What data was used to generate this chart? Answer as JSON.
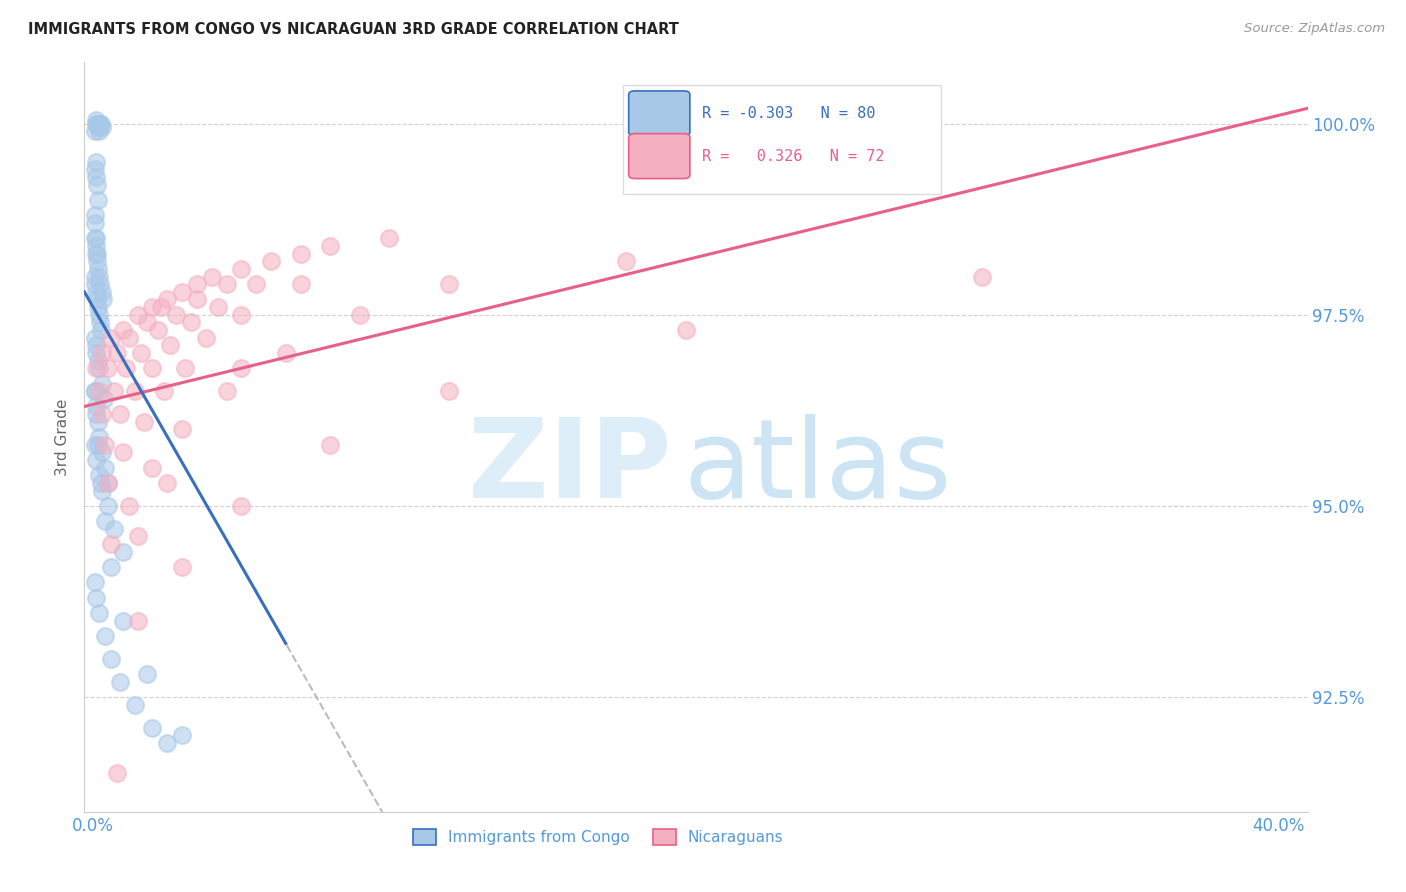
{
  "title": "IMMIGRANTS FROM CONGO VS NICARAGUAN 3RD GRADE CORRELATION CHART",
  "source": "Source: ZipAtlas.com",
  "ylabel": "3rd Grade",
  "ymin": 91.0,
  "ymax": 100.8,
  "xmin": -0.3,
  "xmax": 41.0,
  "legend_blue_r": "-0.303",
  "legend_blue_n": "80",
  "legend_pink_r": "0.326",
  "legend_pink_n": "72",
  "blue_color": "#a8c8e8",
  "pink_color": "#f4b0c0",
  "blue_line_color": "#3a6fbd",
  "pink_line_color": "#e8608a",
  "title_color": "#222222",
  "source_color": "#999999",
  "tick_color": "#5599dd",
  "grid_color": "#cccccc",
  "blue_scatter_x": [
    0.05,
    0.08,
    0.1,
    0.12,
    0.15,
    0.18,
    0.2,
    0.22,
    0.25,
    0.28,
    0.05,
    0.08,
    0.1,
    0.12,
    0.15,
    0.05,
    0.07,
    0.1,
    0.12,
    0.05,
    0.08,
    0.1,
    0.13,
    0.16,
    0.2,
    0.24,
    0.28,
    0.32,
    0.05,
    0.07,
    0.1,
    0.12,
    0.15,
    0.18,
    0.22,
    0.26,
    0.05,
    0.08,
    0.1,
    0.15,
    0.2,
    0.28,
    0.35,
    0.05,
    0.1,
    0.15,
    0.2,
    0.3,
    0.4,
    0.5,
    0.05,
    0.1,
    0.2,
    0.3,
    0.5,
    0.7,
    1.0,
    0.05,
    0.1,
    0.2,
    0.4,
    0.6,
    0.9,
    1.4,
    2.0,
    2.5,
    0.05,
    0.1,
    0.15,
    0.25,
    0.4,
    0.6,
    1.0,
    1.8,
    3.0
  ],
  "blue_scatter_y": [
    99.9,
    100.0,
    100.05,
    100.0,
    99.95,
    100.0,
    99.9,
    100.0,
    100.0,
    99.95,
    99.4,
    99.3,
    99.5,
    99.2,
    99.0,
    98.8,
    98.7,
    98.5,
    98.3,
    98.5,
    98.4,
    98.3,
    98.2,
    98.1,
    98.0,
    97.9,
    97.8,
    97.7,
    98.0,
    97.9,
    97.8,
    97.7,
    97.6,
    97.5,
    97.4,
    97.3,
    97.2,
    97.1,
    97.0,
    96.9,
    96.8,
    96.6,
    96.4,
    96.5,
    96.3,
    96.1,
    95.9,
    95.7,
    95.5,
    95.3,
    95.8,
    95.6,
    95.4,
    95.2,
    95.0,
    94.7,
    94.4,
    94.0,
    93.8,
    93.6,
    93.3,
    93.0,
    92.7,
    92.4,
    92.1,
    91.9,
    96.5,
    96.2,
    95.8,
    95.3,
    94.8,
    94.2,
    93.5,
    92.8,
    92.0
  ],
  "pink_scatter_x": [
    0.1,
    0.3,
    0.6,
    1.0,
    1.5,
    2.0,
    2.5,
    3.5,
    5.0,
    0.2,
    0.5,
    0.8,
    1.2,
    1.8,
    2.3,
    3.0,
    4.0,
    6.0,
    0.3,
    0.7,
    1.1,
    1.6,
    2.2,
    2.8,
    3.5,
    4.5,
    7.0,
    0.4,
    0.9,
    1.4,
    2.0,
    2.6,
    3.3,
    4.2,
    5.5,
    8.0,
    0.5,
    1.0,
    1.7,
    2.4,
    3.1,
    3.8,
    5.0,
    7.0,
    10.0,
    0.6,
    1.2,
    2.0,
    3.0,
    4.5,
    6.5,
    9.0,
    12.0,
    18.0,
    1.5,
    3.0,
    5.0,
    8.0,
    12.0,
    20.0,
    30.0,
    0.8,
    1.5,
    2.5,
    5.0,
    25.0
  ],
  "pink_scatter_y": [
    96.8,
    97.0,
    97.2,
    97.3,
    97.5,
    97.6,
    97.7,
    97.9,
    98.1,
    96.5,
    96.8,
    97.0,
    97.2,
    97.4,
    97.6,
    97.8,
    98.0,
    98.2,
    96.2,
    96.5,
    96.8,
    97.0,
    97.3,
    97.5,
    97.7,
    97.9,
    98.3,
    95.8,
    96.2,
    96.5,
    96.8,
    97.1,
    97.4,
    97.6,
    97.9,
    98.4,
    95.3,
    95.7,
    96.1,
    96.5,
    96.8,
    97.2,
    97.5,
    97.9,
    98.5,
    94.5,
    95.0,
    95.5,
    96.0,
    96.5,
    97.0,
    97.5,
    97.9,
    98.2,
    93.5,
    94.2,
    95.0,
    95.8,
    96.5,
    97.3,
    98.0,
    91.5,
    94.6,
    95.3,
    96.8,
    99.9
  ],
  "blue_line_x0": -0.3,
  "blue_line_x1": 6.5,
  "blue_line_y0": 97.8,
  "blue_line_y1": 93.2,
  "blue_dash_x0": 4.5,
  "blue_dash_x1": 14.0,
  "pink_line_x0": -0.3,
  "pink_line_x1": 41.0,
  "pink_line_y0": 96.3,
  "pink_line_y1": 100.2
}
